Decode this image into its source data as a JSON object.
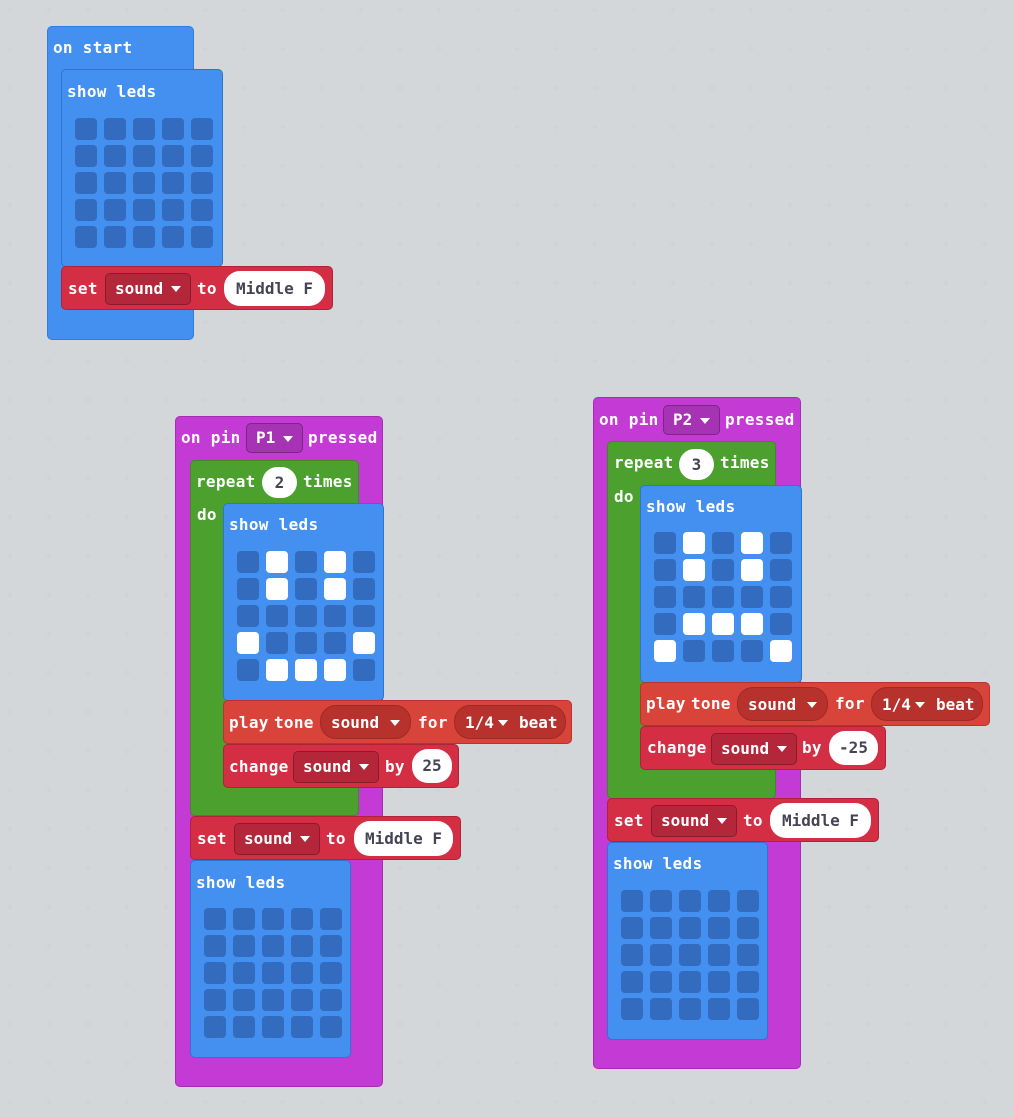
{
  "blocks": {
    "on_start": {
      "label": "on start",
      "show_leds_label": "show leds",
      "leds": [
        [
          0,
          0,
          0,
          0,
          0
        ],
        [
          0,
          0,
          0,
          0,
          0
        ],
        [
          0,
          0,
          0,
          0,
          0
        ],
        [
          0,
          0,
          0,
          0,
          0
        ],
        [
          0,
          0,
          0,
          0,
          0
        ]
      ],
      "set_label": "set",
      "variable": "sound",
      "to_label": "to",
      "value": "Middle F"
    },
    "pin_p1": {
      "on_pin_label": "on pin",
      "pin": "P1",
      "pressed_label": "pressed",
      "repeat_label": "repeat",
      "repeat_count": "2",
      "times_label": "times",
      "do_label": "do",
      "show_leds_label": "show leds",
      "leds": [
        [
          0,
          1,
          0,
          1,
          0
        ],
        [
          0,
          1,
          0,
          1,
          0
        ],
        [
          0,
          0,
          0,
          0,
          0
        ],
        [
          1,
          0,
          0,
          0,
          1
        ],
        [
          0,
          1,
          1,
          1,
          0
        ]
      ],
      "play_label": "play",
      "tone_label": "tone",
      "tone_var": "sound",
      "for_label": "for",
      "beat_value": "1/4",
      "beat_label": "beat",
      "change_label": "change",
      "change_var": "sound",
      "by_label": "by",
      "change_by": "25",
      "set_label": "set",
      "set_var": "sound",
      "to_label": "to",
      "set_value": "Middle F",
      "show_leds_label_2": "show leds",
      "leds_2": [
        [
          0,
          0,
          0,
          0,
          0
        ],
        [
          0,
          0,
          0,
          0,
          0
        ],
        [
          0,
          0,
          0,
          0,
          0
        ],
        [
          0,
          0,
          0,
          0,
          0
        ],
        [
          0,
          0,
          0,
          0,
          0
        ]
      ]
    },
    "pin_p2": {
      "on_pin_label": "on pin",
      "pin": "P2",
      "pressed_label": "pressed",
      "repeat_label": "repeat",
      "repeat_count": "3",
      "times_label": "times",
      "do_label": "do",
      "show_leds_label": "show leds",
      "leds": [
        [
          0,
          1,
          0,
          1,
          0
        ],
        [
          0,
          1,
          0,
          1,
          0
        ],
        [
          0,
          0,
          0,
          0,
          0
        ],
        [
          0,
          1,
          1,
          1,
          0
        ],
        [
          1,
          0,
          0,
          0,
          1
        ]
      ],
      "play_label": "play",
      "tone_label": "tone",
      "tone_var": "sound",
      "for_label": "for",
      "beat_value": "1/4",
      "beat_label": "beat",
      "change_label": "change",
      "change_var": "sound",
      "by_label": "by",
      "change_by": "-25",
      "set_label": "set",
      "set_var": "sound",
      "to_label": "to",
      "set_value": "Middle F",
      "show_leds_label_2": "show leds",
      "leds_2": [
        [
          0,
          0,
          0,
          0,
          0
        ],
        [
          0,
          0,
          0,
          0,
          0
        ],
        [
          0,
          0,
          0,
          0,
          0
        ],
        [
          0,
          0,
          0,
          0,
          0
        ],
        [
          0,
          0,
          0,
          0,
          0
        ]
      ]
    }
  },
  "colors": {
    "basic": "#4390f0",
    "input": "#c33bd4",
    "loops": "#4ca12e",
    "variables": "#d42e45",
    "music": "#d9443a",
    "led_off": "#336cbf",
    "led_on": "#ffffff",
    "workspace": "#eceff1"
  }
}
